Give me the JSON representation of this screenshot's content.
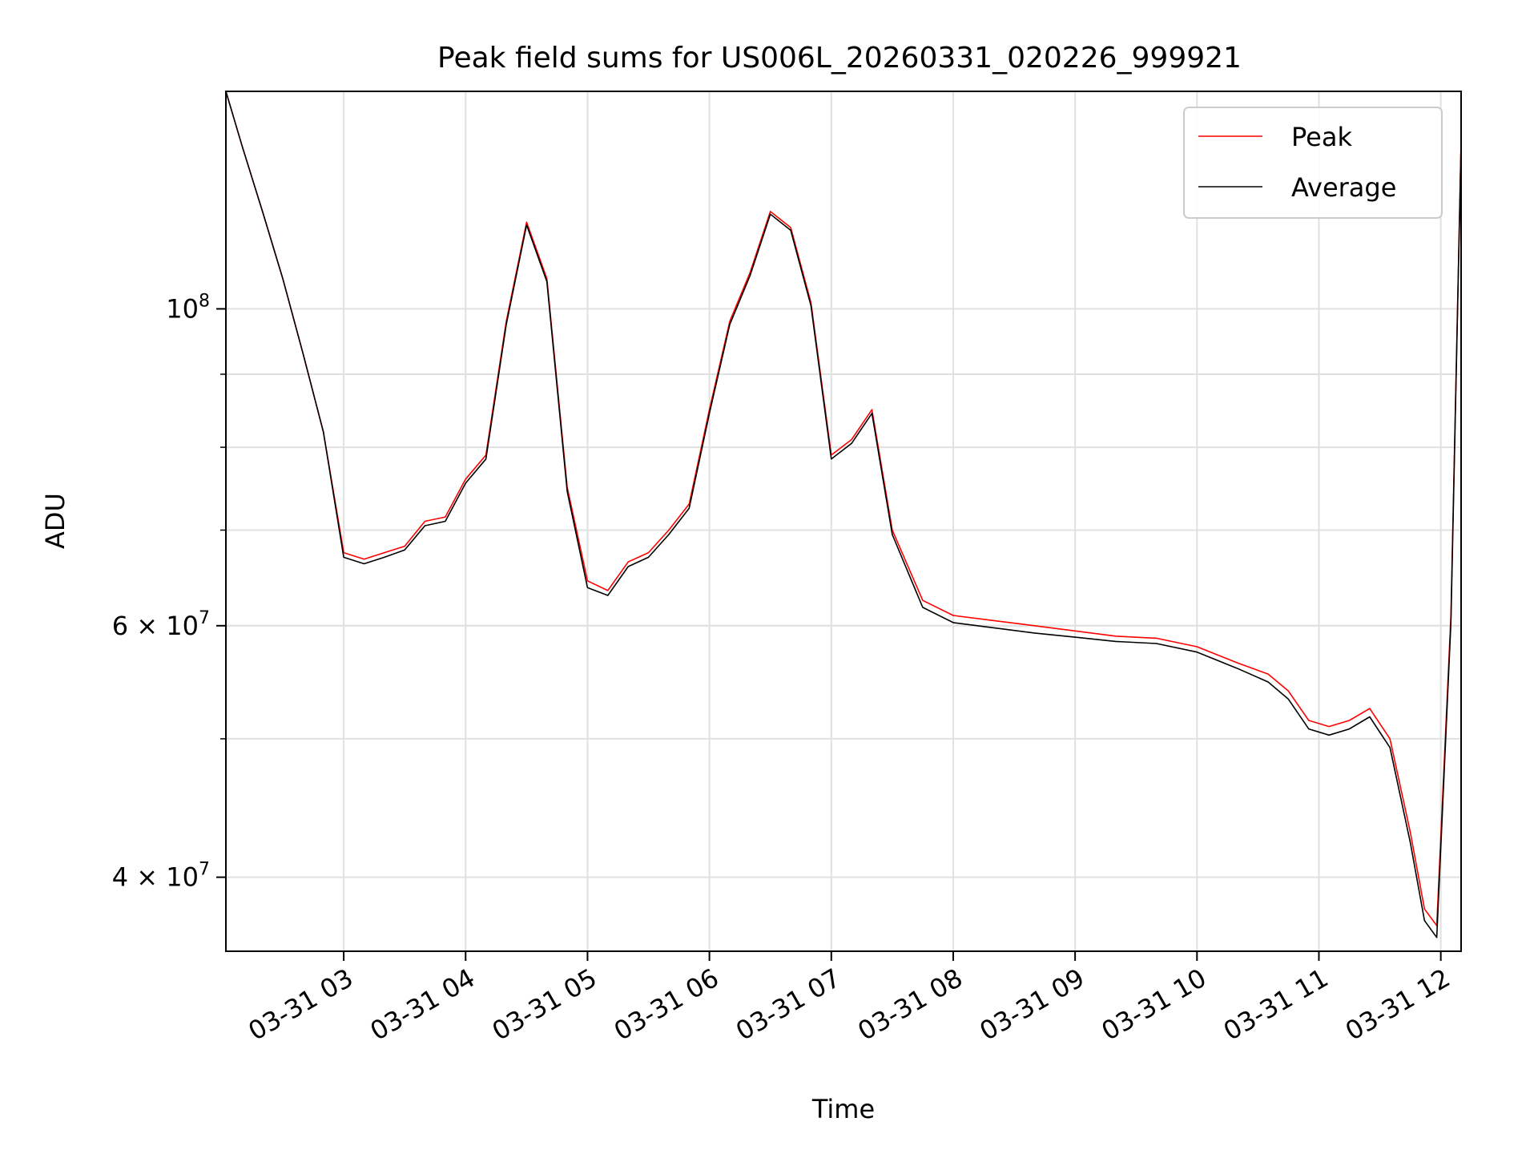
{
  "chart_data": {
    "type": "line",
    "title": "Peak field sums for US006L_20260331_020226_999921",
    "xlabel": "Time",
    "ylabel": "ADU",
    "yscale": "log",
    "grid": true,
    "legend_placement": "top-right",
    "xlim": [
      "2026-03-31 02:02",
      "2026-03-31 12:10"
    ],
    "ylim": [
      35500000,
      142000000
    ],
    "x_ticks": [
      "2026-03-31 03:00",
      "2026-03-31 04:00",
      "2026-03-31 05:00",
      "2026-03-31 06:00",
      "2026-03-31 07:00",
      "2026-03-31 08:00",
      "2026-03-31 09:00",
      "2026-03-31 10:00",
      "2026-03-31 11:00",
      "2026-03-31 12:00"
    ],
    "x_tick_labels": [
      "03-31 03",
      "03-31 04",
      "03-31 05",
      "03-31 06",
      "03-31 07",
      "03-31 08",
      "03-31 09",
      "03-31 10",
      "03-31 11",
      "03-31 12"
    ],
    "y_major_ticks": [
      {
        "value": 100000000,
        "base": "10",
        "exp": "8"
      },
      {
        "value": 60000000,
        "base": "6 × 10",
        "exp": "7"
      },
      {
        "value": 40000000,
        "base": "4 × 10",
        "exp": "7"
      }
    ],
    "y_minor_ticks": [
      50000000,
      60000000,
      70000000,
      80000000,
      90000000
    ],
    "x": [
      "2026-03-31 02:02",
      "2026-03-31 02:10",
      "2026-03-31 02:20",
      "2026-03-31 02:30",
      "2026-03-31 02:40",
      "2026-03-31 02:50",
      "2026-03-31 03:00",
      "2026-03-31 03:10",
      "2026-03-31 03:20",
      "2026-03-31 03:30",
      "2026-03-31 03:40",
      "2026-03-31 03:50",
      "2026-03-31 04:00",
      "2026-03-31 04:10",
      "2026-03-31 04:20",
      "2026-03-31 04:30",
      "2026-03-31 04:40",
      "2026-03-31 04:50",
      "2026-03-31 05:00",
      "2026-03-31 05:10",
      "2026-03-31 05:20",
      "2026-03-31 05:30",
      "2026-03-31 05:40",
      "2026-03-31 05:50",
      "2026-03-31 06:00",
      "2026-03-31 06:10",
      "2026-03-31 06:20",
      "2026-03-31 06:30",
      "2026-03-31 06:40",
      "2026-03-31 06:50",
      "2026-03-31 07:00",
      "2026-03-31 07:10",
      "2026-03-31 07:20",
      "2026-03-31 07:30",
      "2026-03-31 07:45",
      "2026-03-31 08:00",
      "2026-03-31 08:20",
      "2026-03-31 08:40",
      "2026-03-31 09:00",
      "2026-03-31 09:20",
      "2026-03-31 09:40",
      "2026-03-31 10:00",
      "2026-03-31 10:20",
      "2026-03-31 10:35",
      "2026-03-31 10:45",
      "2026-03-31 10:55",
      "2026-03-31 11:05",
      "2026-03-31 11:15",
      "2026-03-31 11:25",
      "2026-03-31 11:35",
      "2026-03-31 11:45",
      "2026-03-31 11:52",
      "2026-03-31 11:58",
      "2026-03-31 12:05",
      "2026-03-31 12:10"
    ],
    "series": [
      {
        "name": "Peak",
        "color": "#ff0000",
        "values": [
          142000000,
          130000000,
          117000000,
          105000000,
          93000000,
          82000000,
          67500000,
          66800000,
          67500000,
          68200000,
          71000000,
          71500000,
          76000000,
          79000000,
          98000000,
          115000000,
          105000000,
          75000000,
          64500000,
          63500000,
          66500000,
          67500000,
          70000000,
          73000000,
          85000000,
          98000000,
          106000000,
          117000000,
          114000000,
          101000000,
          79000000,
          81000000,
          85000000,
          70000000,
          62500000,
          61000000,
          60500000,
          60000000,
          59500000,
          59000000,
          58800000,
          58000000,
          56500000,
          55500000,
          54000000,
          51500000,
          51000000,
          51500000,
          52500000,
          50000000,
          43000000,
          38000000,
          37000000,
          61000000,
          131000000
        ]
      },
      {
        "name": "Average",
        "color": "#000000",
        "values": [
          142000000,
          130000000,
          117000000,
          105000000,
          93000000,
          82000000,
          67000000,
          66300000,
          67000000,
          67800000,
          70500000,
          71000000,
          75500000,
          78500000,
          97500000,
          114500000,
          104500000,
          74500000,
          63800000,
          63000000,
          66000000,
          67000000,
          69500000,
          72500000,
          84500000,
          97500000,
          105500000,
          116500000,
          113500000,
          100500000,
          78500000,
          80500000,
          84500000,
          69500000,
          61800000,
          60300000,
          59800000,
          59300000,
          58900000,
          58500000,
          58300000,
          57500000,
          56000000,
          54800000,
          53300000,
          50800000,
          50300000,
          50800000,
          51800000,
          49300000,
          42300000,
          37300000,
          36300000,
          60300000,
          130500000
        ]
      }
    ]
  }
}
